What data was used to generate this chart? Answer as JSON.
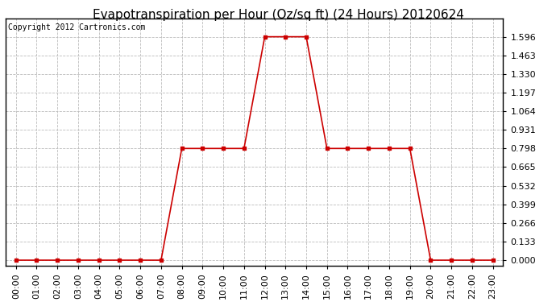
{
  "title": "Evapotranspiration per Hour (Oz/sq ft) (24 Hours) 20120624",
  "copyright_text": "Copyright 2012 Cartronics.com",
  "hours": [
    0,
    1,
    2,
    3,
    4,
    5,
    6,
    7,
    8,
    9,
    10,
    11,
    12,
    13,
    14,
    15,
    16,
    17,
    18,
    19,
    20,
    21,
    22,
    23
  ],
  "values": [
    0.0,
    0.0,
    0.0,
    0.0,
    0.0,
    0.0,
    0.0,
    0.0,
    0.798,
    0.798,
    0.798,
    0.798,
    1.596,
    1.596,
    1.596,
    0.798,
    0.798,
    0.798,
    0.798,
    0.798,
    0.0,
    0.0,
    0.0,
    0.0
  ],
  "line_color": "#cc0000",
  "marker": "s",
  "marker_size": 3,
  "bg_color": "#ffffff",
  "plot_bg_color": "#ffffff",
  "grid_color": "#bbbbbb",
  "ytick_values": [
    0.0,
    0.133,
    0.266,
    0.399,
    0.532,
    0.665,
    0.798,
    0.931,
    1.064,
    1.197,
    1.33,
    1.463,
    1.596
  ],
  "ymax": 1.729,
  "ymin": -0.04,
  "title_fontsize": 11,
  "copyright_fontsize": 7,
  "tick_label_fontsize": 8
}
